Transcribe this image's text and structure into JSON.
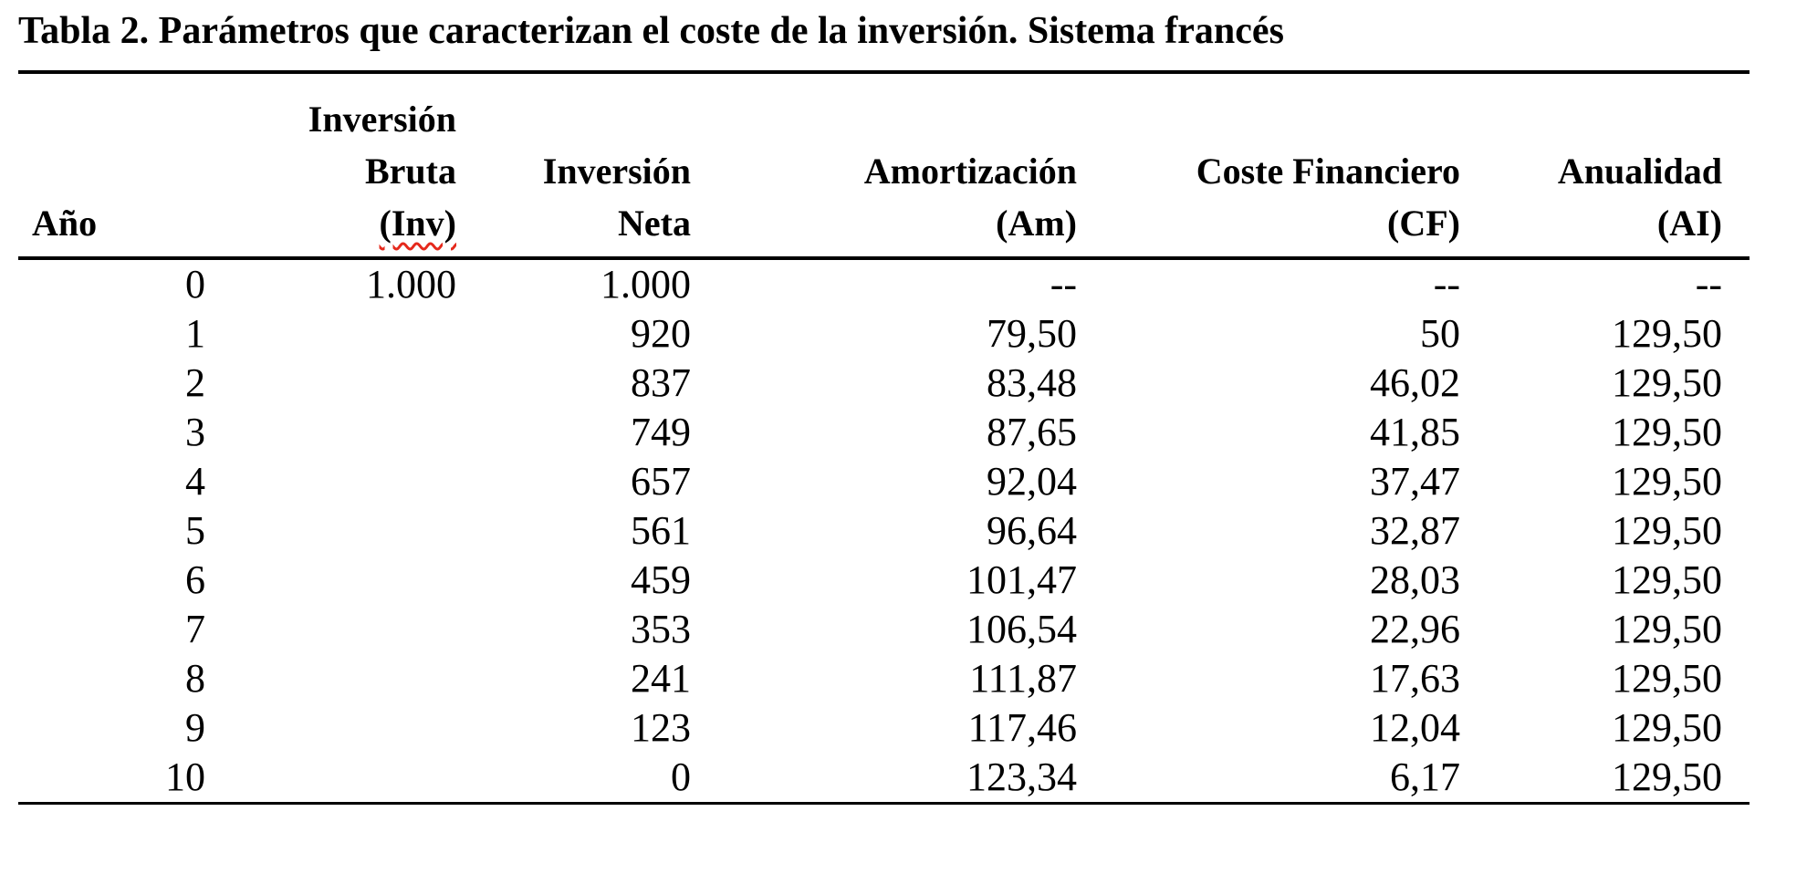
{
  "page": {
    "background": "#ffffff"
  },
  "title": "Tabla 2. Parámetros que caracterizan el coste de la inversión. Sistema francés",
  "table": {
    "columns": [
      {
        "id": "ano",
        "align": "left",
        "label_lines": [
          "Año"
        ]
      },
      {
        "id": "inversion-bruta",
        "align": "right",
        "label_lines": [
          "Inversión",
          "Bruta",
          "(Inv)"
        ],
        "spellcheck_flagged_text": "(Inv)"
      },
      {
        "id": "inversion-neta",
        "align": "right",
        "label_lines": [
          "Inversión",
          "Neta"
        ]
      },
      {
        "id": "amortizacion",
        "align": "right",
        "label_lines": [
          "Amortización",
          "(Am)"
        ]
      },
      {
        "id": "coste-financiero",
        "align": "right",
        "label_lines": [
          "Coste Financiero",
          "(CF)"
        ]
      },
      {
        "id": "anualidad",
        "align": "right",
        "label_lines": [
          "Anualidad",
          "(AI)"
        ]
      }
    ],
    "missing_value_marker": "--",
    "rows": [
      [
        "0",
        "1.000",
        "1.000",
        "--",
        "--",
        "--"
      ],
      [
        "1",
        "",
        "920",
        "79,50",
        "50",
        "129,50"
      ],
      [
        "2",
        "",
        "837",
        "83,48",
        "46,02",
        "129,50"
      ],
      [
        "3",
        "",
        "749",
        "87,65",
        "41,85",
        "129,50"
      ],
      [
        "4",
        "",
        "657",
        "92,04",
        "37,47",
        "129,50"
      ],
      [
        "5",
        "",
        "561",
        "96,64",
        "32,87",
        "129,50"
      ],
      [
        "6",
        "",
        "459",
        "101,47",
        "28,03",
        "129,50"
      ],
      [
        "7",
        "",
        "353",
        "106,54",
        "22,96",
        "129,50"
      ],
      [
        "8",
        "",
        "241",
        "111,87",
        "17,63",
        "129,50"
      ],
      [
        "9",
        "",
        "123",
        "117,46",
        "12,04",
        "129,50"
      ],
      [
        "10",
        "",
        "0",
        "123,34",
        "6,17",
        "129,50"
      ]
    ]
  },
  "colors": {
    "text": "#000000",
    "rule": "#000000",
    "background": "#ffffff",
    "spellcheck_underline": "#e5291c"
  }
}
